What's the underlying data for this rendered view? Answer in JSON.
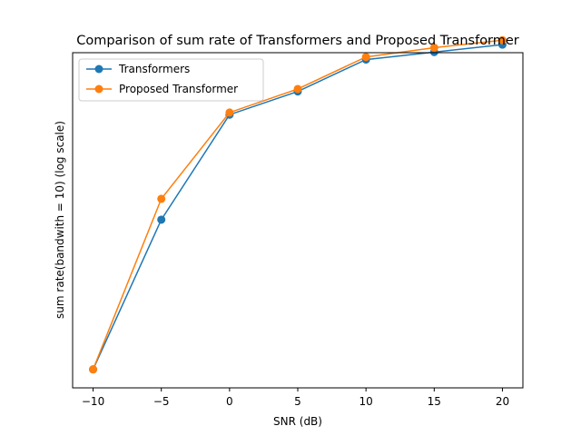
{
  "chart_data": {
    "type": "line",
    "title": "Comparison of sum rate of Transformers and Proposed Transformer",
    "xlabel": "SNR (dB)",
    "ylabel": "sum rate(bandwith = 10) (log scale)",
    "x": [
      -10,
      -5,
      0,
      5,
      10,
      15,
      20
    ],
    "x_ticks": [
      -10,
      -5,
      0,
      5,
      10,
      15,
      20
    ],
    "x_tick_labels": [
      "−10",
      "−5",
      "0",
      "5",
      "10",
      "15",
      "20"
    ],
    "xlim": [
      -11.5,
      21.5
    ],
    "y_scale": "log",
    "y_ticks_shown": false,
    "ylim": [
      0.62,
      63
    ],
    "grid": false,
    "legend_position": "top-left",
    "series": [
      {
        "name": "Transformers",
        "color": "#1f77b4",
        "marker": "circle",
        "values": [
          0.8,
          6.3,
          26.8,
          36.9,
          57.3,
          63.5,
          70.4
        ]
      },
      {
        "name": "Proposed Transformer",
        "color": "#ff7f0e",
        "marker": "circle",
        "values": [
          0.8,
          8.4,
          27.6,
          38.2,
          59.4,
          67.5,
          74.8
        ]
      }
    ]
  }
}
